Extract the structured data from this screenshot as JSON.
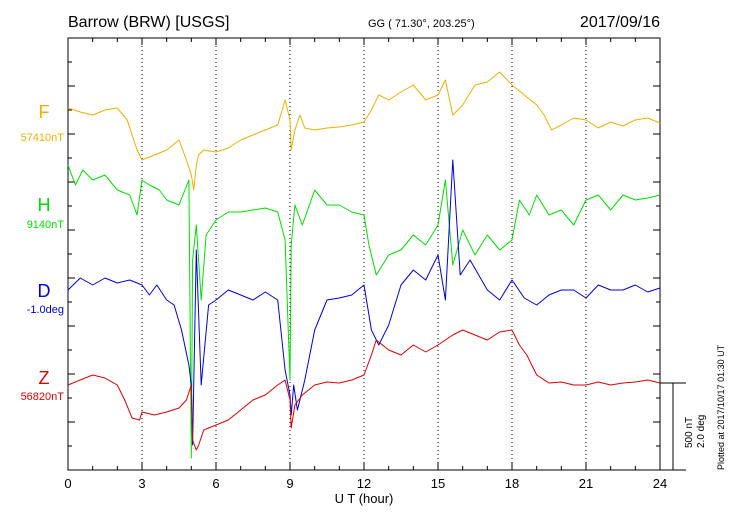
{
  "header": {
    "station": "Barrow (BRW)  [USGS]",
    "coords": "GG ( 71.30°, 203.25°)",
    "date": "2017/09/16"
  },
  "footer": {
    "plotted": "Plotted at 2017/10/17 01:30 UT"
  },
  "scale": {
    "line1": "500 nT",
    "line2": "2.0 deg"
  },
  "chart_data": {
    "type": "line",
    "xlabel": "U T (hour)",
    "xlim": [
      0,
      24
    ],
    "xticks": [
      "0",
      "3",
      "6",
      "9",
      "12",
      "15",
      "18",
      "21",
      "24"
    ],
    "series": [
      {
        "name": "F",
        "baseline": "57410nT",
        "color": "#f0b000",
        "t": [
          0,
          0.5,
          1,
          1.5,
          2,
          2.4,
          2.6,
          2.8,
          3,
          3.5,
          4,
          4.5,
          4.8,
          5,
          5.1,
          5.2,
          5.3,
          5.5,
          6,
          6.5,
          7,
          7.5,
          8,
          8.5,
          8.8,
          9,
          9.05,
          9.2,
          9.4,
          9.6,
          10,
          10.5,
          11,
          11.5,
          12,
          12.3,
          12.6,
          13,
          13.5,
          14,
          14.5,
          15,
          15.3,
          15.6,
          16,
          16.5,
          17,
          17.5,
          18,
          18.5,
          19,
          19.3,
          19.6,
          20,
          20.5,
          21,
          21.5,
          22,
          22.5,
          23,
          23.5,
          24
        ],
        "v": [
          108,
          112,
          115,
          110,
          108,
          120,
          135,
          150,
          160,
          155,
          150,
          140,
          160,
          175,
          190,
          165,
          155,
          150,
          152,
          148,
          140,
          135,
          130,
          125,
          100,
          120,
          150,
          130,
          115,
          128,
          130,
          128,
          127,
          125,
          122,
          110,
          95,
          100,
          92,
          85,
          100,
          95,
          80,
          115,
          105,
          85,
          82,
          72,
          85,
          95,
          105,
          115,
          130,
          125,
          118,
          120,
          128,
          122,
          126,
          120,
          118,
          123
        ]
      },
      {
        "name": "H",
        "baseline": "9140nT",
        "color": "#00e000",
        "t": [
          0,
          0.3,
          0.6,
          1,
          1.5,
          2,
          2.5,
          2.8,
          3,
          3.3,
          3.7,
          4,
          4.5,
          4.9,
          5,
          5.05,
          5.2,
          5.4,
          5.6,
          6,
          6.5,
          7,
          7.5,
          8,
          8.5,
          8.8,
          9,
          9.05,
          9.2,
          9.5,
          10,
          10.5,
          11,
          11.5,
          12,
          12.2,
          12.5,
          13,
          13.5,
          14,
          14.5,
          15,
          15.3,
          15.6,
          16,
          16.5,
          17,
          17.5,
          18,
          18.3,
          18.7,
          19,
          19.5,
          20,
          20.5,
          21,
          21.5,
          22,
          22.5,
          23,
          23.5,
          24
        ],
        "v": [
          165,
          185,
          170,
          180,
          175,
          190,
          195,
          215,
          180,
          185,
          190,
          200,
          205,
          180,
          458,
          260,
          225,
          300,
          235,
          220,
          212,
          212,
          210,
          208,
          212,
          240,
          380,
          245,
          205,
          225,
          190,
          205,
          205,
          212,
          215,
          245,
          275,
          255,
          250,
          235,
          245,
          225,
          180,
          265,
          230,
          255,
          235,
          250,
          240,
          200,
          215,
          195,
          215,
          210,
          225,
          200,
          195,
          210,
          195,
          200,
          198,
          195
        ]
      },
      {
        "name": "D",
        "baseline": "-1.0deg",
        "color": "#0000e0",
        "t": [
          0,
          0.5,
          1,
          1.5,
          2,
          2.5,
          3,
          3.3,
          3.6,
          4,
          4.3,
          4.6,
          4.9,
          5,
          5.05,
          5.2,
          5.4,
          5.7,
          6,
          6.5,
          7,
          7.5,
          8,
          8.5,
          8.8,
          9,
          9.05,
          9.15,
          9.3,
          9.6,
          10,
          10.5,
          11,
          11.5,
          12,
          12.3,
          12.6,
          13,
          13.5,
          14,
          14.5,
          15,
          15.3,
          15.6,
          15.9,
          16.3,
          17,
          17.5,
          18,
          18.5,
          19,
          19.5,
          20,
          20.5,
          21,
          21.5,
          22,
          22.5,
          23,
          23.5,
          24
        ],
        "v": [
          290,
          278,
          285,
          278,
          283,
          280,
          285,
          295,
          285,
          300,
          305,
          330,
          365,
          385,
          445,
          250,
          385,
          305,
          300,
          290,
          295,
          300,
          292,
          300,
          370,
          395,
          415,
          385,
          410,
          380,
          330,
          300,
          298,
          295,
          285,
          330,
          345,
          325,
          285,
          270,
          280,
          255,
          300,
          160,
          275,
          260,
          290,
          300,
          280,
          298,
          305,
          295,
          290,
          290,
          298,
          285,
          290,
          290,
          285,
          292,
          288
        ]
      },
      {
        "name": "Z",
        "baseline": "56820nT",
        "color": "#e00000",
        "t": [
          0,
          0.5,
          1,
          1.5,
          2,
          2.3,
          2.6,
          2.9,
          3,
          3.5,
          4,
          4.5,
          4.8,
          5,
          5.05,
          5.2,
          5.3,
          5.5,
          6,
          6.5,
          7,
          7.5,
          8,
          8.5,
          8.8,
          9,
          9.05,
          9.2,
          9.5,
          10,
          10.5,
          11,
          11.5,
          12,
          12.3,
          12.5,
          13,
          13.5,
          14,
          14.5,
          15,
          15.3,
          15.6,
          16,
          16.5,
          17,
          17.5,
          18,
          18.3,
          18.6,
          19,
          19.5,
          20,
          20.5,
          21,
          21.5,
          22,
          22.5,
          23,
          23.5,
          24
        ],
        "v": [
          385,
          380,
          375,
          378,
          385,
          400,
          418,
          420,
          412,
          415,
          412,
          408,
          400,
          385,
          440,
          450,
          445,
          430,
          425,
          420,
          410,
          400,
          395,
          385,
          380,
          400,
          428,
          405,
          395,
          385,
          382,
          383,
          380,
          375,
          355,
          340,
          350,
          355,
          345,
          352,
          345,
          340,
          335,
          330,
          335,
          340,
          332,
          330,
          345,
          355,
          375,
          383,
          382,
          385,
          385,
          382,
          385,
          383,
          382,
          380,
          383
        ]
      }
    ]
  }
}
